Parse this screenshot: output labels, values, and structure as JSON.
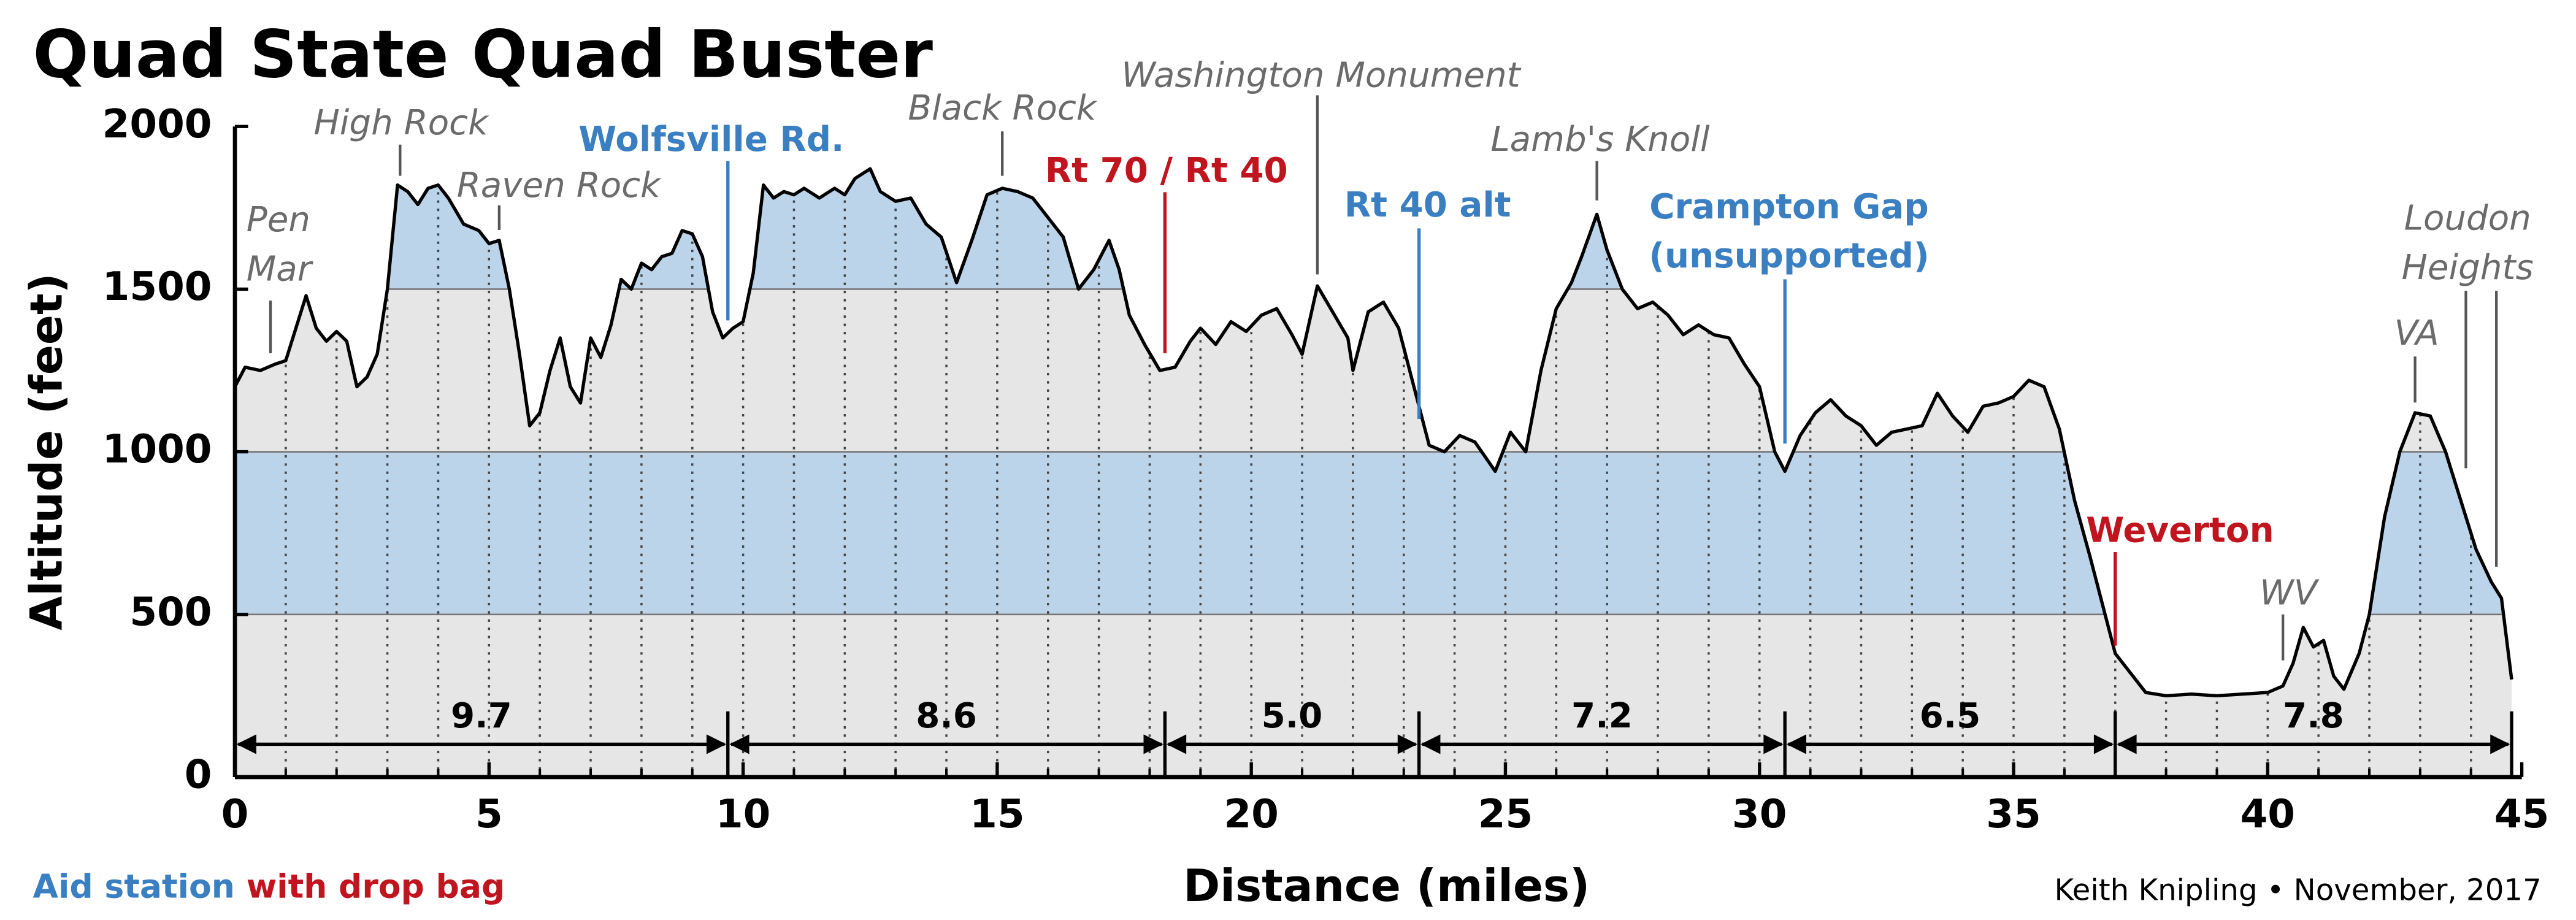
{
  "chart_data": {
    "type": "area",
    "title": "Quad State Quad Buster",
    "xlabel": "Distance  (miles)",
    "ylabel": "Altitude  (feet)",
    "credit": "Keith Knipling • November, 2017",
    "xlim": [
      0,
      45
    ],
    "ylim": [
      0,
      2000
    ],
    "xticks": [
      0,
      5,
      10,
      15,
      20,
      25,
      30,
      35,
      40,
      45
    ],
    "xminorticks": [
      1,
      2,
      3,
      4,
      6,
      7,
      8,
      9,
      11,
      12,
      13,
      14,
      16,
      17,
      18,
      19,
      21,
      22,
      23,
      24,
      26,
      27,
      28,
      29,
      31,
      32,
      33,
      34,
      36,
      37,
      38,
      39,
      41,
      42,
      43,
      44
    ],
    "yticks": [
      0,
      500,
      1000,
      1500,
      2000
    ],
    "grid": true,
    "fill_color": "#e6e6e6",
    "band_color": "#bcd4ea",
    "line_color": "#000000",
    "bands": [
      [
        500,
        1000
      ],
      [
        1500,
        2000
      ]
    ],
    "x": [
      0,
      0.2,
      0.5,
      0.8,
      1.0,
      1.2,
      1.4,
      1.6,
      1.8,
      2.0,
      2.2,
      2.4,
      2.6,
      2.8,
      3.0,
      3.2,
      3.4,
      3.6,
      3.8,
      4.0,
      4.2,
      4.5,
      4.8,
      5.0,
      5.2,
      5.4,
      5.6,
      5.8,
      6.0,
      6.2,
      6.4,
      6.6,
      6.8,
      7.0,
      7.2,
      7.4,
      7.6,
      7.8,
      8.0,
      8.2,
      8.4,
      8.6,
      8.8,
      9.0,
      9.2,
      9.4,
      9.6,
      9.8,
      10.0,
      10.2,
      10.4,
      10.6,
      10.8,
      11.0,
      11.2,
      11.5,
      11.8,
      12.0,
      12.2,
      12.5,
      12.7,
      13.0,
      13.3,
      13.6,
      13.9,
      14.2,
      14.5,
      14.8,
      15.1,
      15.4,
      15.7,
      16.0,
      16.3,
      16.6,
      16.9,
      17.2,
      17.4,
      17.6,
      17.9,
      18.2,
      18.5,
      18.8,
      19.0,
      19.3,
      19.6,
      19.9,
      20.2,
      20.5,
      20.8,
      21.0,
      21.3,
      21.6,
      21.9,
      22.0,
      22.3,
      22.6,
      22.9,
      23.2,
      23.5,
      23.8,
      24.1,
      24.4,
      24.8,
      25.1,
      25.4,
      25.7,
      26.0,
      26.3,
      26.5,
      26.8,
      27.0,
      27.3,
      27.6,
      27.9,
      28.2,
      28.5,
      28.8,
      29.1,
      29.4,
      29.7,
      30.0,
      30.3,
      30.5,
      30.8,
      31.1,
      31.4,
      31.7,
      32.0,
      32.3,
      32.6,
      32.9,
      33.2,
      33.5,
      33.8,
      34.1,
      34.4,
      34.7,
      35.0,
      35.3,
      35.6,
      35.9,
      36.2,
      36.5,
      36.8,
      37.0,
      37.3,
      37.6,
      38.0,
      38.5,
      39.0,
      39.5,
      40.0,
      40.3,
      40.5,
      40.7,
      40.9,
      41.1,
      41.3,
      41.5,
      41.8,
      42.0,
      42.3,
      42.6,
      42.9,
      43.2,
      43.5,
      43.8,
      44.1,
      44.4,
      44.6,
      44.8
    ],
    "values": [
      1200,
      1260,
      1250,
      1270,
      1280,
      1380,
      1480,
      1380,
      1340,
      1370,
      1340,
      1200,
      1230,
      1300,
      1500,
      1820,
      1800,
      1760,
      1810,
      1820,
      1780,
      1700,
      1680,
      1640,
      1650,
      1500,
      1300,
      1080,
      1120,
      1250,
      1350,
      1200,
      1150,
      1350,
      1290,
      1390,
      1530,
      1500,
      1580,
      1560,
      1600,
      1610,
      1680,
      1670,
      1600,
      1430,
      1350,
      1380,
      1400,
      1550,
      1820,
      1780,
      1800,
      1790,
      1810,
      1780,
      1810,
      1790,
      1840,
      1870,
      1800,
      1770,
      1780,
      1700,
      1660,
      1520,
      1650,
      1790,
      1810,
      1800,
      1780,
      1720,
      1660,
      1500,
      1560,
      1650,
      1560,
      1420,
      1330,
      1250,
      1260,
      1340,
      1380,
      1330,
      1400,
      1370,
      1420,
      1440,
      1360,
      1300,
      1510,
      1430,
      1350,
      1250,
      1430,
      1460,
      1380,
      1200,
      1020,
      1000,
      1050,
      1030,
      940,
      1060,
      1000,
      1250,
      1440,
      1520,
      1600,
      1730,
      1620,
      1500,
      1440,
      1460,
      1420,
      1360,
      1390,
      1360,
      1350,
      1270,
      1200,
      1000,
      940,
      1050,
      1120,
      1160,
      1110,
      1080,
      1020,
      1060,
      1070,
      1080,
      1180,
      1110,
      1060,
      1140,
      1150,
      1170,
      1220,
      1200,
      1070,
      850,
      680,
      500,
      380,
      320,
      260,
      250,
      255,
      250,
      255,
      260,
      280,
      350,
      460,
      400,
      420,
      310,
      270,
      380,
      500,
      800,
      1000,
      1120,
      1110,
      1000,
      850,
      700,
      600,
      550,
      300
    ],
    "legend": [
      {
        "name": "Aid station",
        "color": "#3a7fc1"
      },
      {
        "name": "with drop bag",
        "color": "#c0141e"
      }
    ],
    "place_color": "#6b6b6b",
    "annotations": [
      {
        "lines": [
          "Pen",
          "Mar"
        ],
        "x": 0.7,
        "style": "place"
      },
      {
        "lines": [
          "High Rock"
        ],
        "x": 3.25,
        "style": "place"
      },
      {
        "lines": [
          "Raven Rock"
        ],
        "x": 5.2,
        "style": "place"
      },
      {
        "lines": [
          "Wolfsville Rd."
        ],
        "x": 9.7,
        "style": "aid"
      },
      {
        "lines": [
          "Black Rock"
        ],
        "x": 15.1,
        "style": "place"
      },
      {
        "lines": [
          "Rt 70 / Rt 40"
        ],
        "x": 18.3,
        "style": "drop"
      },
      {
        "lines": [
          "Washington Monument"
        ],
        "x": 21.3,
        "style": "place"
      },
      {
        "lines": [
          "Rt 40 alt"
        ],
        "x": 23.3,
        "style": "aid"
      },
      {
        "lines": [
          "Lamb's Knoll"
        ],
        "x": 26.8,
        "style": "place"
      },
      {
        "lines": [
          "Crampton Gap",
          "(unsupported)"
        ],
        "x": 30.5,
        "style": "aid"
      },
      {
        "lines": [
          "Weverton"
        ],
        "x": 37.0,
        "style": "drop"
      },
      {
        "lines": [
          "WV"
        ],
        "x": 40.3,
        "style": "place"
      },
      {
        "lines": [
          "VA"
        ],
        "x": 42.9,
        "style": "place"
      },
      {
        "lines": [
          "Loudon",
          "Heights"
        ],
        "x": [
          43.9,
          44.5
        ],
        "style": "place"
      }
    ],
    "segments": {
      "stations": [
        0,
        9.7,
        18.3,
        23.3,
        30.5,
        37.0,
        44.8
      ],
      "values": [
        9.7,
        8.6,
        5,
        7.2,
        6.5,
        7.8
      ],
      "value_labels": [
        "9.7",
        "8.6",
        "5.0",
        "7.2",
        "6.5",
        "7.8"
      ]
    }
  }
}
